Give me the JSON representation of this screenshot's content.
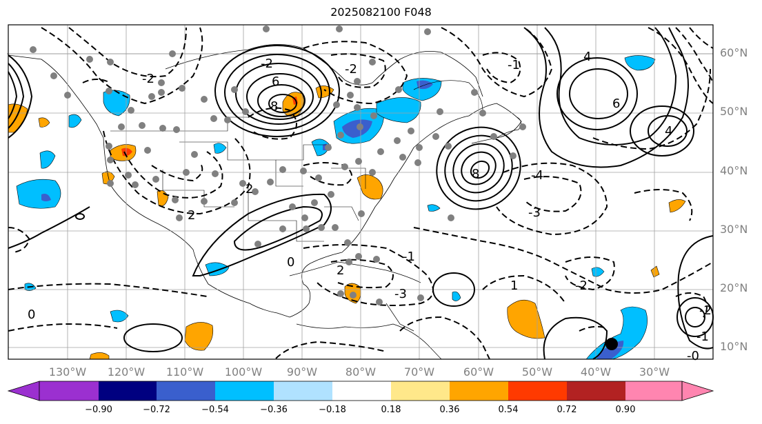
{
  "title": "2025082100 F048",
  "lat_labels": [
    "60°N",
    "50°N",
    "40°N",
    "30°N",
    "20°N",
    "10°N"
  ],
  "lon_labels": [
    "130°W",
    "120°W",
    "110°W",
    "100°W",
    "90°W",
    "80°W",
    "70°W",
    "60°W",
    "50°W",
    "40°W",
    "30°W"
  ],
  "contour_labels": [
    "-2",
    "6",
    "8",
    "-2",
    "2",
    "-4",
    "8",
    "4",
    "6",
    "4",
    "-3",
    "-2",
    "-1",
    "-3",
    "-2",
    "-1",
    "0",
    "-0",
    "2",
    "-1",
    "0",
    "-2",
    "2",
    "1"
  ],
  "colorbar": {
    "tick_labels": [
      "−0.90",
      "−0.72",
      "−0.54",
      "−0.36",
      "−0.18",
      "0.18",
      "0.36",
      "0.54",
      "0.72",
      "0.90"
    ],
    "colors": [
      "#9b30d0",
      "#000080",
      "#3a5fcd",
      "#00bfff",
      "#b0e2ff",
      "#ffffff",
      "#ffe88a",
      "#ffa500",
      "#ff3a00",
      "#b22222",
      "#ff85b0",
      "#ff85b0"
    ],
    "extend": "both"
  },
  "colors": {
    "positive_fill": "#ffa500",
    "negative_fill": "#00bfff",
    "strong_negative_fill": "#3a5fcd",
    "station_marker": "#808080",
    "grid": "#a0a0a0"
  }
}
